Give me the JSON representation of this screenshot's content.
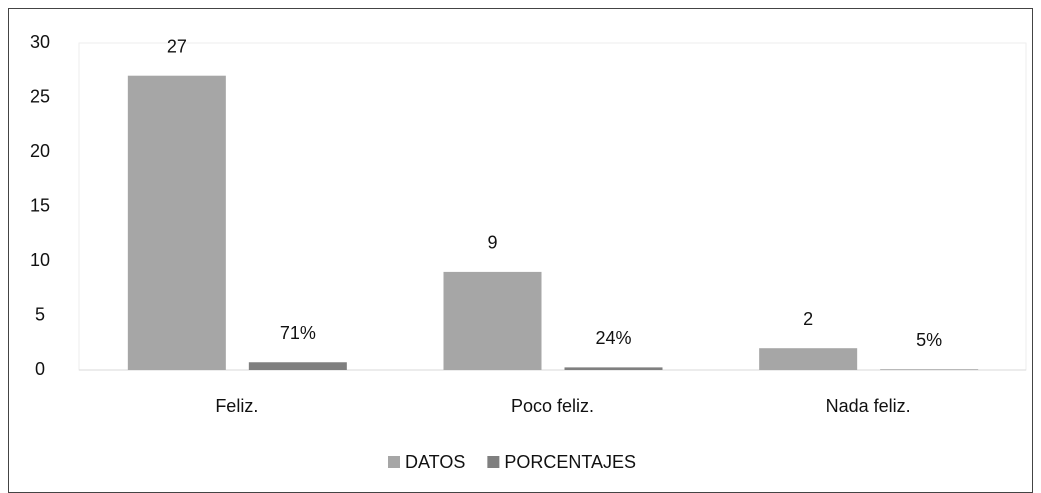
{
  "chart_data": {
    "type": "bar",
    "categories": [
      "Feliz.",
      "Poco feliz.",
      "Nada feliz."
    ],
    "series": [
      {
        "name": "DATOS",
        "color": "#a6a6a6",
        "values": [
          27,
          9,
          2
        ]
      },
      {
        "name": "PORCENTAJES",
        "color": "#7f7f7f",
        "values": [
          0.71,
          0.24,
          0.05
        ],
        "value_labels": [
          "71%",
          "24%",
          "5%"
        ]
      }
    ],
    "ylim": [
      0,
      30
    ],
    "yticks": [
      0,
      5,
      10,
      15,
      20,
      25,
      30
    ],
    "grid": false,
    "legend": "bottom"
  }
}
